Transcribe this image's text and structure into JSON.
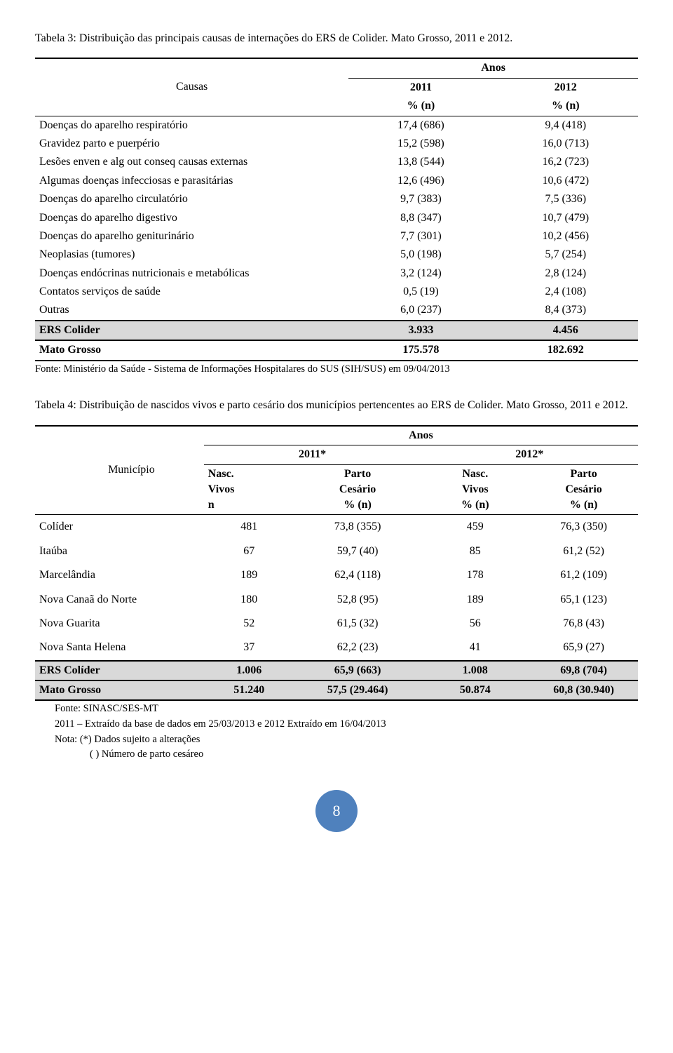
{
  "table3": {
    "caption": "Tabela 3: Distribuição das principais causas de internações do ERS de Colider. Mato Grosso, 2011 e 2012.",
    "header": {
      "causas": "Causas",
      "anos": "Anos",
      "y2011": "2011",
      "y2012": "2012",
      "pctn1": "%   (n)",
      "pctn2": "%   (n)"
    },
    "rows": [
      {
        "label": "Doenças do aparelho respiratório",
        "v1": "17,4 (686)",
        "v2": "9,4 (418)"
      },
      {
        "label": "Gravidez parto e puerpério",
        "v1": "15,2 (598)",
        "v2": "16,0 (713)"
      },
      {
        "label": "Lesões enven e alg out conseq causas externas",
        "v1": "13,8 (544)",
        "v2": "16,2 (723)"
      },
      {
        "label": "Algumas doenças infecciosas e parasitárias",
        "v1": "12,6 (496)",
        "v2": "10,6 (472)"
      },
      {
        "label": "Doenças do aparelho circulatório",
        "v1": "9,7 (383)",
        "v2": "7,5 (336)"
      },
      {
        "label": "Doenças do aparelho digestivo",
        "v1": "8,8 (347)",
        "v2": "10,7 (479)"
      },
      {
        "label": "Doenças do aparelho geniturinário",
        "v1": "7,7 (301)",
        "v2": "10,2 (456)"
      },
      {
        "label": "Neoplasias (tumores)",
        "v1": "5,0 (198)",
        "v2": "5,7 (254)"
      },
      {
        "label": "Doenças endócrinas nutricionais e metabólicas",
        "v1": "3,2 (124)",
        "v2": "2,8 (124)"
      },
      {
        "label": "Contatos serviços de saúde",
        "v1": "0,5 (19)",
        "v2": "2,4 (108)"
      },
      {
        "label": "Outras",
        "v1": "6,0 (237)",
        "v2": "8,4 (373)"
      }
    ],
    "ers": {
      "label": "ERS Colider",
      "v1": "3.933",
      "v2": "4.456"
    },
    "mt": {
      "label": "Mato Grosso",
      "v1": "175.578",
      "v2": "182.692"
    },
    "footnote": "Fonte: Ministério da Saúde - Sistema de Informações Hospitalares do SUS (SIH/SUS) em 09/04/2013"
  },
  "table4": {
    "caption": "Tabela 4: Distribuição de nascidos vivos e parto cesário dos municípios pertencentes ao ERS de Colider. Mato Grosso, 2011 e 2012.",
    "header": {
      "municipio": "Município",
      "anos": "Anos",
      "y2011": "2011*",
      "y2012": "2012*",
      "nasc1": "Nasc.",
      "vivos1": "Vivos",
      "n1": "n",
      "parto1": "Parto",
      "cesario1": "Cesário",
      "pctn1": "%   (n)",
      "nasc2": "Nasc.",
      "vivos2": "Vivos",
      "pctn2": "%   (n)",
      "parto2": "Parto",
      "cesario2": "Cesário",
      "pctn3": "%   (n)"
    },
    "rows": [
      {
        "label": "Colíder",
        "n1": "481",
        "p1": "73,8 (355)",
        "n2": "459",
        "p2": "76,3 (350)"
      },
      {
        "label": "Itaúba",
        "n1": "67",
        "p1": "59,7 (40)",
        "n2": "85",
        "p2": "61,2 (52)"
      },
      {
        "label": "Marcelândia",
        "n1": "189",
        "p1": "62,4 (118)",
        "n2": "178",
        "p2": "61,2 (109)"
      },
      {
        "label": "Nova Canaã do Norte",
        "n1": "180",
        "p1": "52,8 (95)",
        "n2": "189",
        "p2": "65,1 (123)"
      },
      {
        "label": "Nova Guarita",
        "n1": "52",
        "p1": "61,5 (32)",
        "n2": "56",
        "p2": "76,8 (43)"
      },
      {
        "label": "Nova Santa Helena",
        "n1": "37",
        "p1": "62,2 (23)",
        "n2": "41",
        "p2": "65,9 (27)"
      }
    ],
    "ers": {
      "label": "ERS Colíder",
      "n1": "1.006",
      "p1": "65,9 (663)",
      "n2": "1.008",
      "p2": "69,8 (704)"
    },
    "mt": {
      "label": "Mato Grosso",
      "n1": "51.240",
      "p1": "57,5 (29.464)",
      "n2": "50.874",
      "p2": "60,8 (30.940)"
    },
    "footnotes": {
      "l1": "Fonte: SINASC/SES-MT",
      "l2": "2011 – Extraído da base de dados em 25/03/2013 e 2012 Extraído em 16/04/2013",
      "l3": "Nota: (*) Dados sujeito a alterações",
      "l4": "(  ) Número de parto cesáreo"
    }
  },
  "page_number": "8"
}
